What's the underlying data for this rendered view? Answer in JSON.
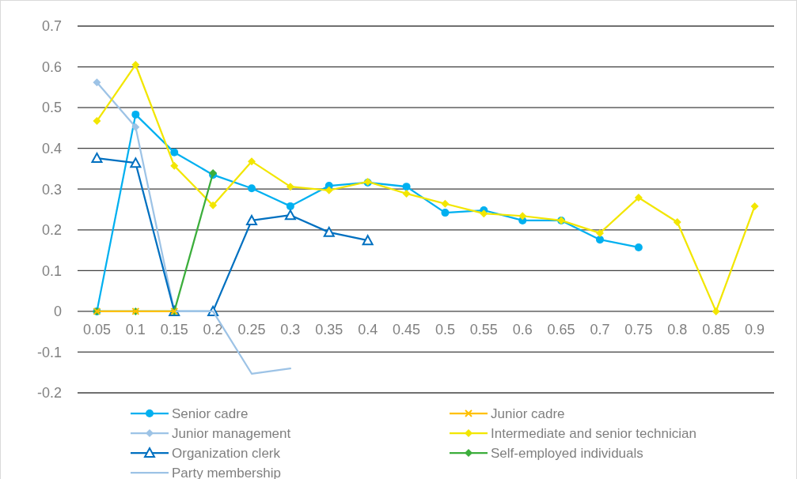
{
  "chart_data": {
    "type": "line",
    "categories": [
      "0.05",
      "0.1",
      "0.15",
      "0.2",
      "0.25",
      "0.3",
      "0.35",
      "0.4",
      "0.45",
      "0.5",
      "0.55",
      "0.6",
      "0.65",
      "0.7",
      "0.75",
      "0.8",
      "0.85",
      "0.9"
    ],
    "ylim": [
      -0.2,
      0.7
    ],
    "yticks": [
      -0.2,
      -0.1,
      0,
      0.1,
      0.2,
      0.3,
      0.4,
      0.5,
      0.6,
      0.7
    ],
    "grid": "y",
    "legend": "bottom",
    "series": [
      {
        "name": "Senior cadre",
        "color": "#00b0f0",
        "marker": "circle",
        "values": [
          0,
          0.483,
          0.39,
          0.335,
          0.302,
          0.258,
          0.308,
          0.316,
          0.306,
          0.242,
          0.248,
          0.223,
          0.223,
          0.176,
          0.157,
          null,
          null,
          null
        ]
      },
      {
        "name": "Junior cadre",
        "color": "#ffc000",
        "marker": "cross",
        "values": [
          0,
          0,
          0,
          null,
          null,
          null,
          null,
          null,
          null,
          null,
          null,
          null,
          null,
          null,
          null,
          null,
          null,
          null
        ]
      },
      {
        "name": "Junior management",
        "color": "#9dc3e6",
        "marker": "diamond",
        "values": [
          0.562,
          0.452,
          0,
          null,
          null,
          null,
          null,
          null,
          null,
          null,
          null,
          null,
          null,
          null,
          null,
          null,
          null,
          null
        ]
      },
      {
        "name": "Intermediate and senior technician",
        "color": "#f2e600",
        "marker": "diamond",
        "values": [
          0.467,
          0.605,
          0.357,
          0.26,
          0.368,
          0.306,
          0.297,
          0.318,
          0.289,
          0.264,
          0.24,
          0.234,
          0.223,
          0.192,
          0.279,
          0.219,
          0,
          0.258
        ]
      },
      {
        "name": "Organization clerk",
        "color": "#0070c0",
        "marker": "triangle",
        "values": [
          0.376,
          0.364,
          0,
          0,
          0.223,
          0.236,
          0.194,
          0.174,
          null,
          null,
          null,
          null,
          null,
          null,
          null,
          null,
          null,
          null
        ]
      },
      {
        "name": "Self-employed individuals",
        "color": "#3cae3c",
        "marker": "diamond",
        "values": [
          0,
          0,
          0,
          0.339,
          null,
          null,
          null,
          null,
          null,
          null,
          null,
          null,
          null,
          null,
          null,
          null,
          null,
          null
        ]
      },
      {
        "name": "Party membership",
        "color": "#9dc3e6",
        "marker": "none",
        "values": [
          0,
          0,
          0,
          0,
          -0.153,
          -0.14,
          null,
          null,
          null,
          null,
          null,
          null,
          null,
          null,
          null,
          null,
          null,
          null
        ]
      }
    ]
  }
}
